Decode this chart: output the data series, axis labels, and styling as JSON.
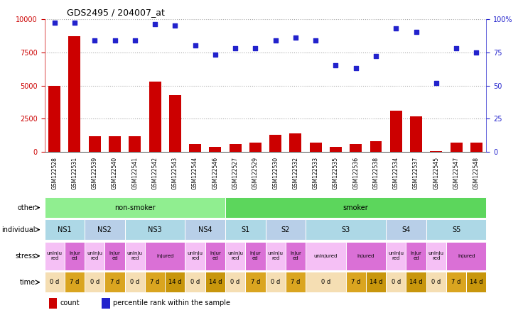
{
  "title": "GDS2495 / 204007_at",
  "samples": [
    "GSM122528",
    "GSM122531",
    "GSM122539",
    "GSM122540",
    "GSM122541",
    "GSM122542",
    "GSM122543",
    "GSM122544",
    "GSM122546",
    "GSM122527",
    "GSM122529",
    "GSM122530",
    "GSM122532",
    "GSM122533",
    "GSM122535",
    "GSM122536",
    "GSM122538",
    "GSM122534",
    "GSM122537",
    "GSM122545",
    "GSM122547",
    "GSM122548"
  ],
  "counts": [
    5000,
    8700,
    1200,
    1200,
    1200,
    5300,
    4300,
    600,
    400,
    600,
    700,
    1300,
    1400,
    700,
    400,
    600,
    800,
    3100,
    2700,
    100,
    700,
    700
  ],
  "percentiles": [
    97,
    97,
    84,
    84,
    84,
    96,
    95,
    80,
    73,
    78,
    78,
    84,
    86,
    84,
    65,
    63,
    72,
    93,
    90,
    52,
    78,
    75
  ],
  "ylim_left": [
    0,
    10000
  ],
  "ylim_right": [
    0,
    100
  ],
  "yticks_left": [
    0,
    2500,
    5000,
    7500,
    10000
  ],
  "yticks_right": [
    0,
    25,
    50,
    75,
    100
  ],
  "bar_color": "#cc0000",
  "dot_color": "#2222cc",
  "other_row": {
    "groups": [
      {
        "label": "non-smoker",
        "start": 0,
        "end": 9,
        "color": "#90ee90"
      },
      {
        "label": "smoker",
        "start": 9,
        "end": 22,
        "color": "#5cd65c"
      }
    ]
  },
  "individual_row": {
    "groups": [
      {
        "label": "NS1",
        "start": 0,
        "end": 2,
        "color": "#add8e6"
      },
      {
        "label": "NS2",
        "start": 2,
        "end": 4,
        "color": "#b8cfe8"
      },
      {
        "label": "NS3",
        "start": 4,
        "end": 7,
        "color": "#add8e6"
      },
      {
        "label": "NS4",
        "start": 7,
        "end": 9,
        "color": "#b8cfe8"
      },
      {
        "label": "S1",
        "start": 9,
        "end": 11,
        "color": "#add8e6"
      },
      {
        "label": "S2",
        "start": 11,
        "end": 13,
        "color": "#b8cfe8"
      },
      {
        "label": "S3",
        "start": 13,
        "end": 17,
        "color": "#add8e6"
      },
      {
        "label": "S4",
        "start": 17,
        "end": 19,
        "color": "#b8cfe8"
      },
      {
        "label": "S5",
        "start": 19,
        "end": 22,
        "color": "#add8e6"
      }
    ]
  },
  "stress_row": {
    "cells": [
      {
        "label": "uninju\nred",
        "start": 0,
        "end": 1,
        "color": "#f5c0f5"
      },
      {
        "label": "injur\ned",
        "start": 1,
        "end": 2,
        "color": "#da70d6"
      },
      {
        "label": "uninju\nred",
        "start": 2,
        "end": 3,
        "color": "#f5c0f5"
      },
      {
        "label": "injur\ned",
        "start": 3,
        "end": 4,
        "color": "#da70d6"
      },
      {
        "label": "uninju\nred",
        "start": 4,
        "end": 5,
        "color": "#f5c0f5"
      },
      {
        "label": "injured",
        "start": 5,
        "end": 7,
        "color": "#da70d6"
      },
      {
        "label": "uninju\nred",
        "start": 7,
        "end": 8,
        "color": "#f5c0f5"
      },
      {
        "label": "injur\ned",
        "start": 8,
        "end": 9,
        "color": "#da70d6"
      },
      {
        "label": "uninju\nred",
        "start": 9,
        "end": 10,
        "color": "#f5c0f5"
      },
      {
        "label": "injur\ned",
        "start": 10,
        "end": 11,
        "color": "#da70d6"
      },
      {
        "label": "uninju\nred",
        "start": 11,
        "end": 12,
        "color": "#f5c0f5"
      },
      {
        "label": "injur\ned",
        "start": 12,
        "end": 13,
        "color": "#da70d6"
      },
      {
        "label": "uninjured",
        "start": 13,
        "end": 15,
        "color": "#f5c0f5"
      },
      {
        "label": "injured",
        "start": 15,
        "end": 17,
        "color": "#da70d6"
      },
      {
        "label": "uninju\nred",
        "start": 17,
        "end": 18,
        "color": "#f5c0f5"
      },
      {
        "label": "injur\ned",
        "start": 18,
        "end": 19,
        "color": "#da70d6"
      },
      {
        "label": "uninju\nred",
        "start": 19,
        "end": 20,
        "color": "#f5c0f5"
      },
      {
        "label": "injured",
        "start": 20,
        "end": 22,
        "color": "#da70d6"
      }
    ]
  },
  "time_row": {
    "cells": [
      {
        "label": "0 d",
        "start": 0,
        "end": 1,
        "color": "#f5deb3"
      },
      {
        "label": "7 d",
        "start": 1,
        "end": 2,
        "color": "#daa520"
      },
      {
        "label": "0 d",
        "start": 2,
        "end": 3,
        "color": "#f5deb3"
      },
      {
        "label": "7 d",
        "start": 3,
        "end": 4,
        "color": "#daa520"
      },
      {
        "label": "0 d",
        "start": 4,
        "end": 5,
        "color": "#f5deb3"
      },
      {
        "label": "7 d",
        "start": 5,
        "end": 6,
        "color": "#daa520"
      },
      {
        "label": "14 d",
        "start": 6,
        "end": 7,
        "color": "#c8960c"
      },
      {
        "label": "0 d",
        "start": 7,
        "end": 8,
        "color": "#f5deb3"
      },
      {
        "label": "14 d",
        "start": 8,
        "end": 9,
        "color": "#c8960c"
      },
      {
        "label": "0 d",
        "start": 9,
        "end": 10,
        "color": "#f5deb3"
      },
      {
        "label": "7 d",
        "start": 10,
        "end": 11,
        "color": "#daa520"
      },
      {
        "label": "0 d",
        "start": 11,
        "end": 12,
        "color": "#f5deb3"
      },
      {
        "label": "7 d",
        "start": 12,
        "end": 13,
        "color": "#daa520"
      },
      {
        "label": "0 d",
        "start": 13,
        "end": 15,
        "color": "#f5deb3"
      },
      {
        "label": "7 d",
        "start": 15,
        "end": 16,
        "color": "#daa520"
      },
      {
        "label": "14 d",
        "start": 16,
        "end": 17,
        "color": "#c8960c"
      },
      {
        "label": "0 d",
        "start": 17,
        "end": 18,
        "color": "#f5deb3"
      },
      {
        "label": "14 d",
        "start": 18,
        "end": 19,
        "color": "#c8960c"
      },
      {
        "label": "0 d",
        "start": 19,
        "end": 20,
        "color": "#f5deb3"
      },
      {
        "label": "7 d",
        "start": 20,
        "end": 21,
        "color": "#daa520"
      },
      {
        "label": "14 d",
        "start": 21,
        "end": 22,
        "color": "#c8960c"
      }
    ]
  },
  "row_labels": [
    "other",
    "individual",
    "stress",
    "time"
  ],
  "bg_color": "#ffffff",
  "grid_color": "#888888"
}
